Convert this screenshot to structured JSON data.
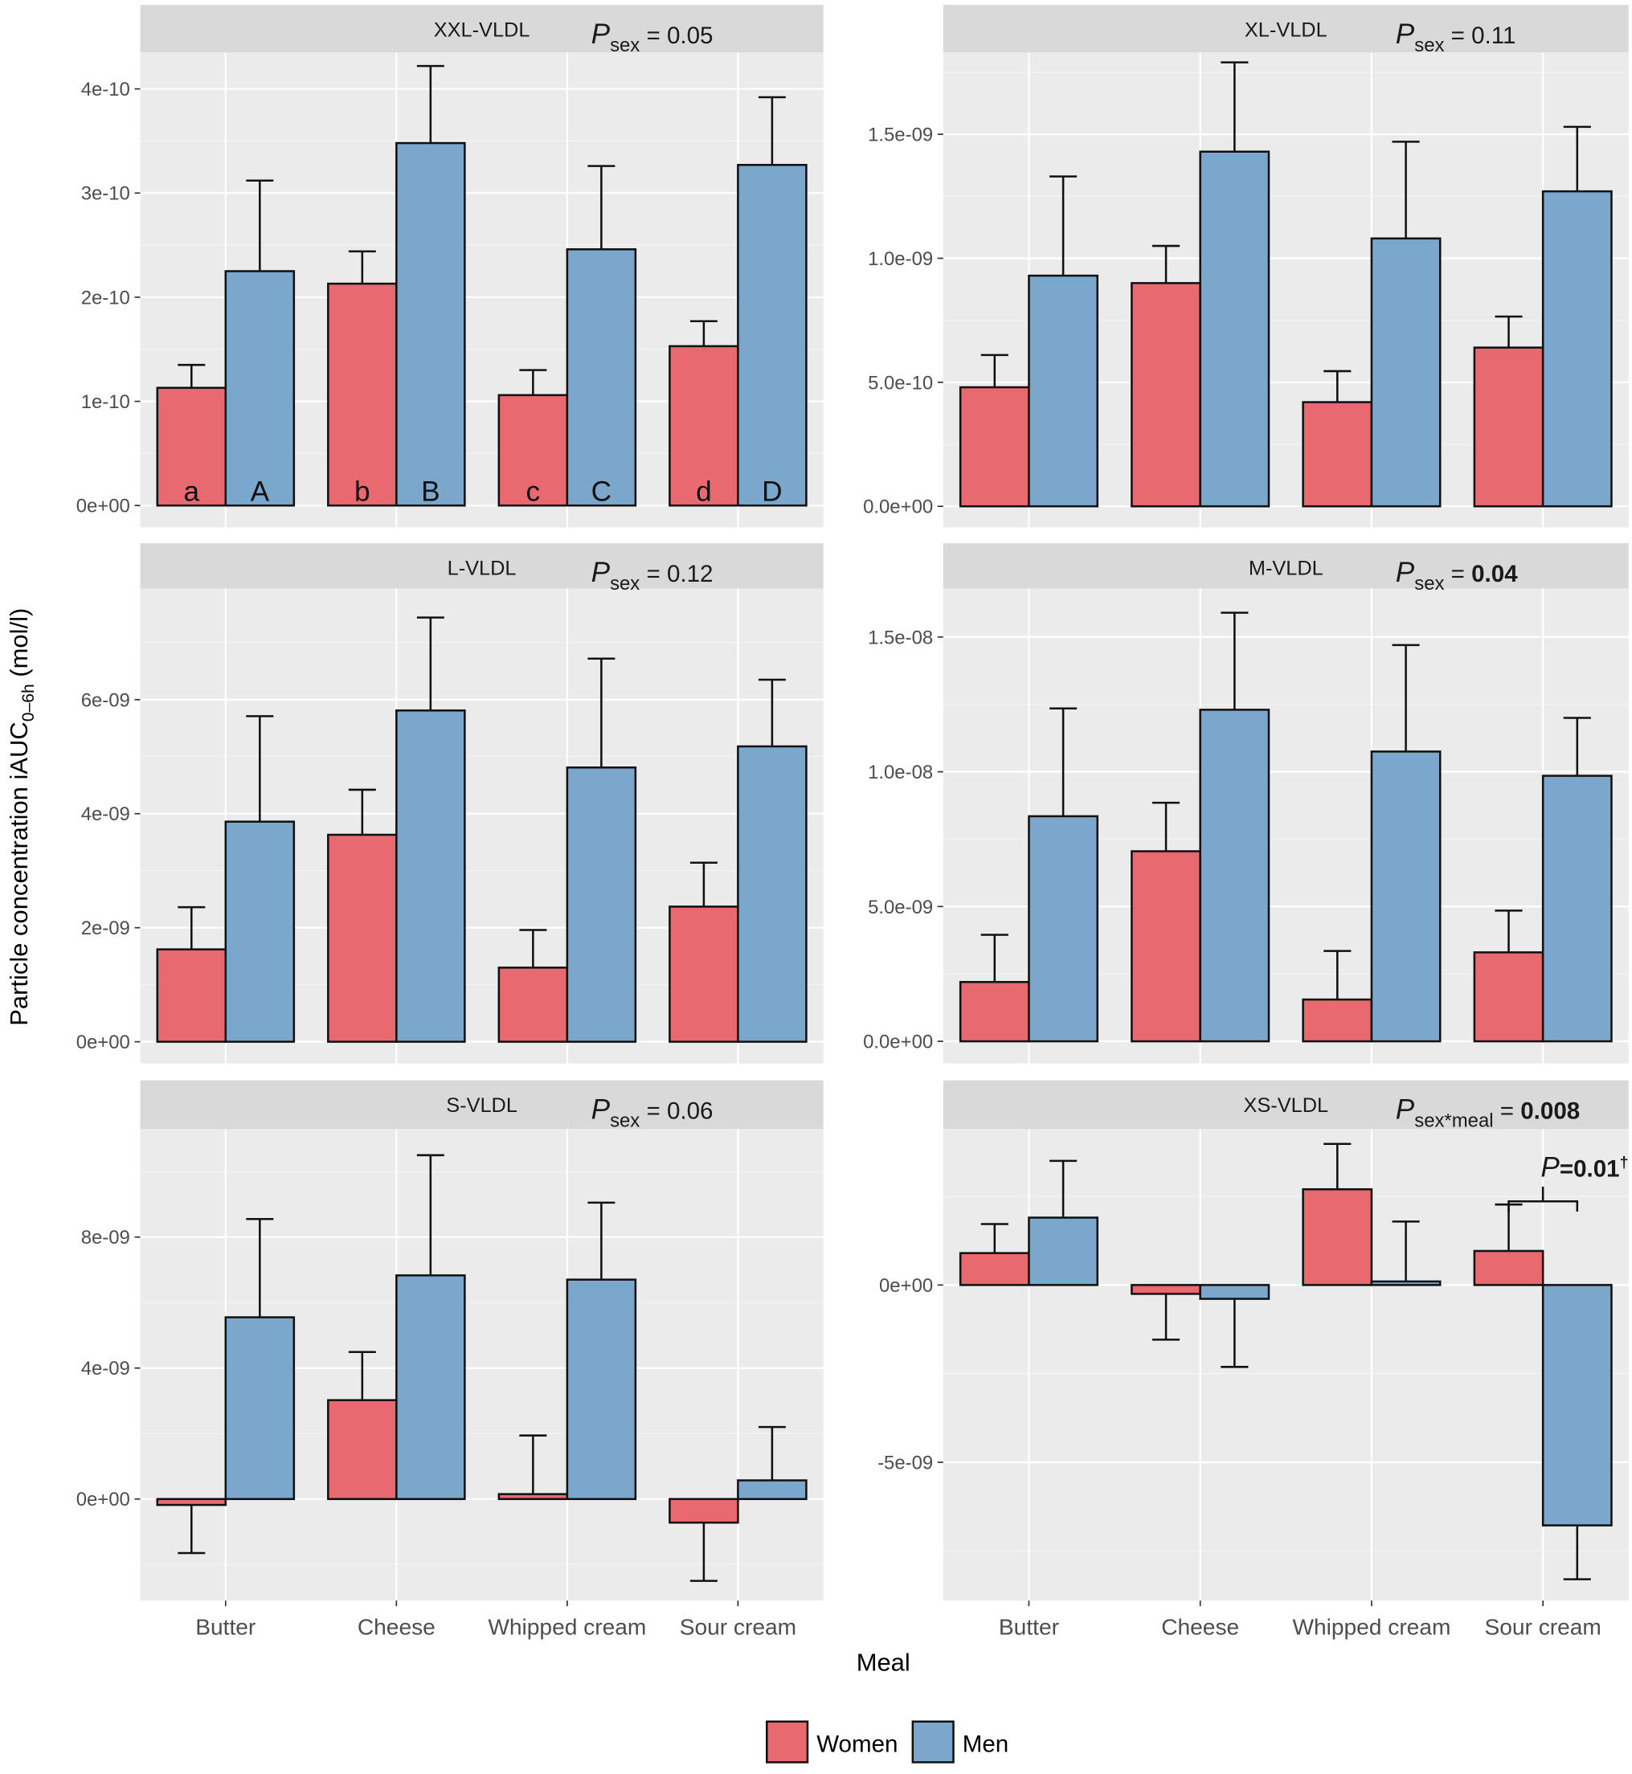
{
  "chart_data": {
    "type": "bar",
    "title": "",
    "xlabel": "Meal",
    "ylabel": "Particle concentration iAUC0–6h (mol/l)",
    "ylabel_parts": {
      "main": "Particle concentration iAUC",
      "sub": "0–6h",
      "unit": " (mol/l)"
    },
    "categories": [
      "Butter",
      "Cheese",
      "Whipped cream",
      "Sour cream"
    ],
    "legend": {
      "position": "bottom",
      "entries": [
        {
          "name": "Women",
          "color": "#e8696f"
        },
        {
          "name": "Men",
          "color": "#7ba7cd"
        }
      ]
    },
    "grid": true,
    "panels": [
      {
        "name": "XXL-VLDL",
        "p_label": {
          "P": "P",
          "sub": "sex",
          "eq": " = ",
          "value": "0.05",
          "bold": false
        },
        "ylim": [
          -2.1e-11,
          4.35e-10
        ],
        "yticks": [
          0,
          1e-10,
          2e-10,
          3e-10,
          4e-10
        ],
        "yticklabels": [
          "0e+00",
          "1e-10",
          "2e-10",
          "3e-10",
          "4e-10"
        ],
        "series": [
          {
            "name": "Women",
            "values": [
              1.13e-10,
              2.13e-10,
              1.06e-10,
              1.53e-10
            ],
            "upper": [
              1.35e-10,
              2.44e-10,
              1.3e-10,
              1.77e-10
            ]
          },
          {
            "name": "Men",
            "values": [
              2.25e-10,
              3.48e-10,
              2.46e-10,
              3.27e-10
            ],
            "upper": [
              3.12e-10,
              4.22e-10,
              3.26e-10,
              3.92e-10
            ]
          }
        ],
        "bar_labels": [
          [
            "a",
            "A"
          ],
          [
            "b",
            "B"
          ],
          [
            "c",
            "C"
          ],
          [
            "d",
            "D"
          ]
        ],
        "show_xlabels": false
      },
      {
        "name": "XL-VLDL",
        "p_label": {
          "P": "P",
          "sub": "sex",
          "eq": " = ",
          "value": "0.11",
          "bold": false
        },
        "ylim": [
          -8.5e-11,
          1.83e-09
        ],
        "yticks": [
          0,
          5e-10,
          1e-09,
          1.5e-09
        ],
        "yticklabels": [
          "0.0e+00",
          "5.0e-10",
          "1.0e-09",
          "1.5e-09"
        ],
        "series": [
          {
            "name": "Women",
            "values": [
              4.8e-10,
              9e-10,
              4.2e-10,
              6.4e-10
            ],
            "upper": [
              6.1e-10,
              1.05e-09,
              5.45e-10,
              7.65e-10
            ]
          },
          {
            "name": "Men",
            "values": [
              9.3e-10,
              1.43e-09,
              1.08e-09,
              1.27e-09
            ],
            "upper": [
              1.33e-09,
              1.79e-09,
              1.47e-09,
              1.53e-09
            ]
          }
        ],
        "show_xlabels": false
      },
      {
        "name": "L-VLDL",
        "p_label": {
          "P": "P",
          "sub": "sex",
          "eq": " = ",
          "value": "0.12",
          "bold": false
        },
        "ylim": [
          -3.8e-10,
          7.95e-09
        ],
        "yticks": [
          0,
          2e-09,
          4e-09,
          6e-09
        ],
        "yticklabels": [
          "0e+00",
          "2e-09",
          "4e-09",
          "6e-09"
        ],
        "series": [
          {
            "name": "Women",
            "values": [
              1.62e-09,
              3.63e-09,
              1.3e-09,
              2.37e-09
            ],
            "upper": [
              2.36e-09,
              4.42e-09,
              1.96e-09,
              3.14e-09
            ]
          },
          {
            "name": "Men",
            "values": [
              3.86e-09,
              5.81e-09,
              4.81e-09,
              5.18e-09
            ],
            "upper": [
              5.71e-09,
              7.44e-09,
              6.72e-09,
              6.35e-09
            ]
          }
        ],
        "show_xlabels": false
      },
      {
        "name": "M-VLDL",
        "p_label": {
          "P": "P",
          "sub": "sex",
          "eq": " = ",
          "value": "0.04",
          "bold": true
        },
        "ylim": [
          -8.2e-10,
          1.68e-08
        ],
        "yticks": [
          0,
          5e-09,
          1e-08,
          1.5e-08
        ],
        "yticklabels": [
          "0.0e+00",
          "5.0e-09",
          "1.0e-08",
          "1.5e-08"
        ],
        "series": [
          {
            "name": "Women",
            "values": [
              2.2e-09,
              7.05e-09,
              1.55e-09,
              3.3e-09
            ],
            "upper": [
              3.95e-09,
              8.85e-09,
              3.35e-09,
              4.85e-09
            ]
          },
          {
            "name": "Men",
            "values": [
              8.35e-09,
              1.23e-08,
              1.075e-08,
              9.85e-09
            ],
            "upper": [
              1.235e-08,
              1.59e-08,
              1.47e-08,
              1.2e-08
            ]
          }
        ],
        "show_xlabels": false
      },
      {
        "name": "S-VLDL",
        "p_label": {
          "P": "P",
          "sub": "sex",
          "eq": " = ",
          "value": "0.06",
          "bold": false
        },
        "ylim": [
          -3.1e-09,
          1.13e-08
        ],
        "yticks": [
          0,
          4e-09,
          8e-09
        ],
        "yticklabels": [
          "0e+00",
          "4e-09",
          "8e-09"
        ],
        "series": [
          {
            "name": "Women",
            "values": [
              -1.8e-10,
              3.02e-09,
              1.5e-10,
              -7.2e-10
            ],
            "lower": [
              -1.65e-09,
              null,
              null,
              -2.5e-09
            ],
            "upper": [
              null,
              4.49e-09,
              1.94e-09,
              null
            ]
          },
          {
            "name": "Men",
            "values": [
              5.55e-09,
              6.83e-09,
              6.7e-09,
              5.7e-10
            ],
            "upper": [
              8.55e-09,
              1.05e-08,
              9.05e-09,
              2.2e-09
            ]
          }
        ],
        "show_xlabels": true
      },
      {
        "name": "XS-VLDL",
        "p_label": {
          "P": "P",
          "sub": "sex*meal",
          "eq": " = ",
          "value": "0.008",
          "bold": true
        },
        "ylim": [
          -8.9e-09,
          4.4e-09
        ],
        "yticks": [
          -5e-09,
          0
        ],
        "yticklabels": [
          "-5e-09",
          "0e+00"
        ],
        "series": [
          {
            "name": "Women",
            "values": [
              9e-10,
              -2.5e-10,
              2.7e-09,
              9.6e-10
            ],
            "upper": [
              1.72e-09,
              null,
              3.98e-09,
              2.27e-09
            ],
            "lower": [
              null,
              -1.54e-09,
              null,
              null
            ]
          },
          {
            "name": "Men",
            "values": [
              1.9e-09,
              -3.9e-10,
              1e-10,
              -6.78e-09
            ],
            "upper": [
              3.5e-09,
              null,
              1.79e-09,
              null
            ],
            "lower": [
              null,
              -2.31e-09,
              null,
              -8.3e-09
            ]
          }
        ],
        "annotation": {
          "text_P": "P",
          "text_rest": "=0.01",
          "dagger": "†",
          "category": "Sour cream"
        },
        "show_xlabels": true
      }
    ]
  }
}
